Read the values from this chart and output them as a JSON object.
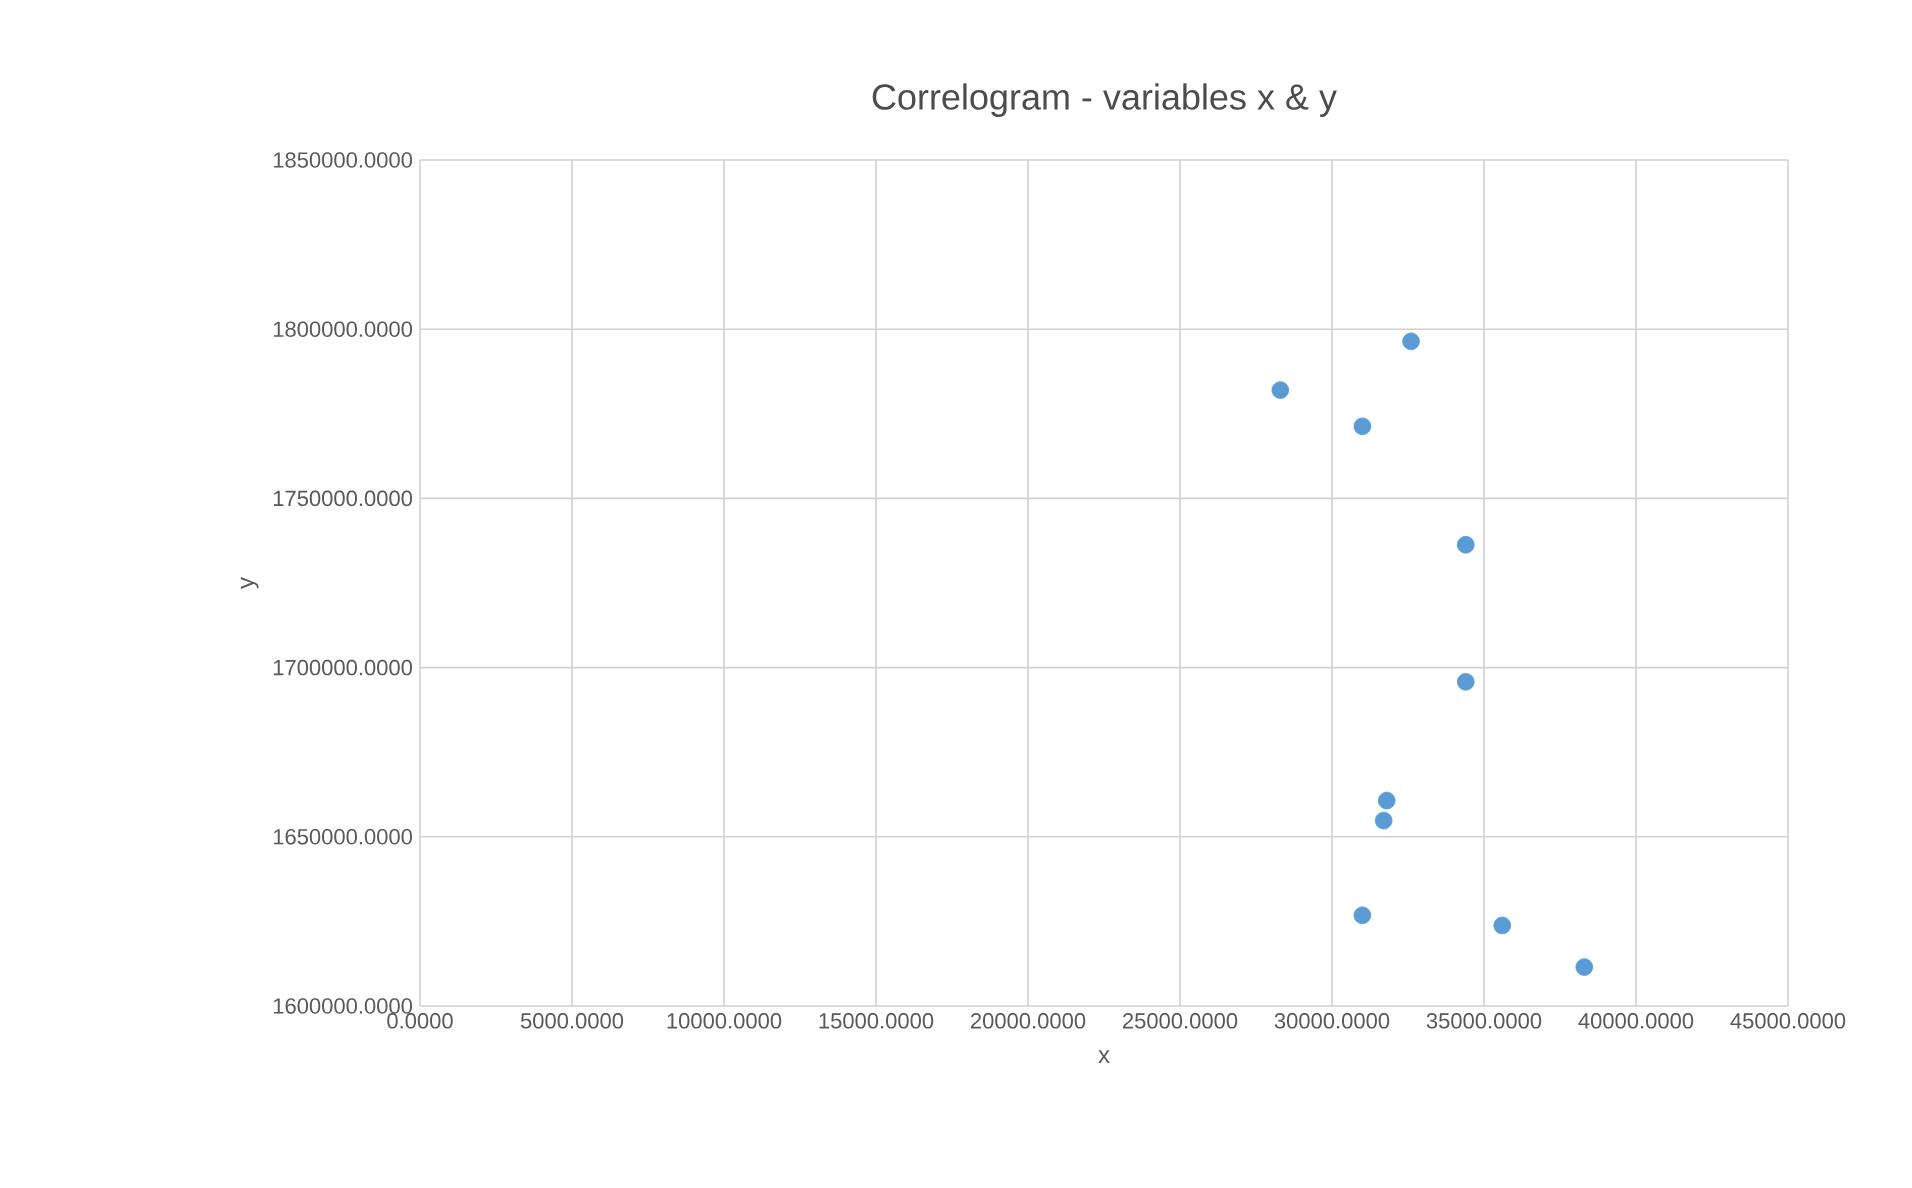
{
  "chart_data": {
    "type": "scatter",
    "title": "Correlogram - variables x & y",
    "xlabel": "x",
    "ylabel": "y",
    "series": [
      {
        "color": "#5b9bd5",
        "x": [
          28300,
          32600,
          31000,
          34400,
          34400,
          31800,
          31700,
          31000,
          35600,
          38300
        ],
        "values": [
          1782000,
          1796400,
          1771300,
          1736300,
          1695800,
          1660700,
          1654800,
          1626800,
          1623800,
          1611500
        ]
      }
    ],
    "xlim": [
      0,
      45000
    ],
    "ylim": [
      1600000,
      1850000
    ],
    "xticks": [
      {
        "value": 0,
        "label": "0.0000"
      },
      {
        "value": 5000,
        "label": "5000.0000"
      },
      {
        "value": 10000,
        "label": "10000.0000"
      },
      {
        "value": 15000,
        "label": "15000.0000"
      },
      {
        "value": 20000,
        "label": "20000.0000"
      },
      {
        "value": 25000,
        "label": "25000.0000"
      },
      {
        "value": 30000,
        "label": "30000.0000"
      },
      {
        "value": 35000,
        "label": "35000.0000"
      },
      {
        "value": 40000,
        "label": "40000.0000"
      },
      {
        "value": 45000,
        "label": "45000.0000"
      }
    ],
    "yticks": [
      {
        "value": 1600000,
        "label": "1600000.0000"
      },
      {
        "value": 1650000,
        "label": "1650000.0000"
      },
      {
        "value": 1700000,
        "label": "1700000.0000"
      },
      {
        "value": 1750000,
        "label": "1750000.0000"
      },
      {
        "value": 1800000,
        "label": "1800000.0000"
      },
      {
        "value": 1850000,
        "label": "1850000.0000"
      }
    ],
    "grid": true
  }
}
